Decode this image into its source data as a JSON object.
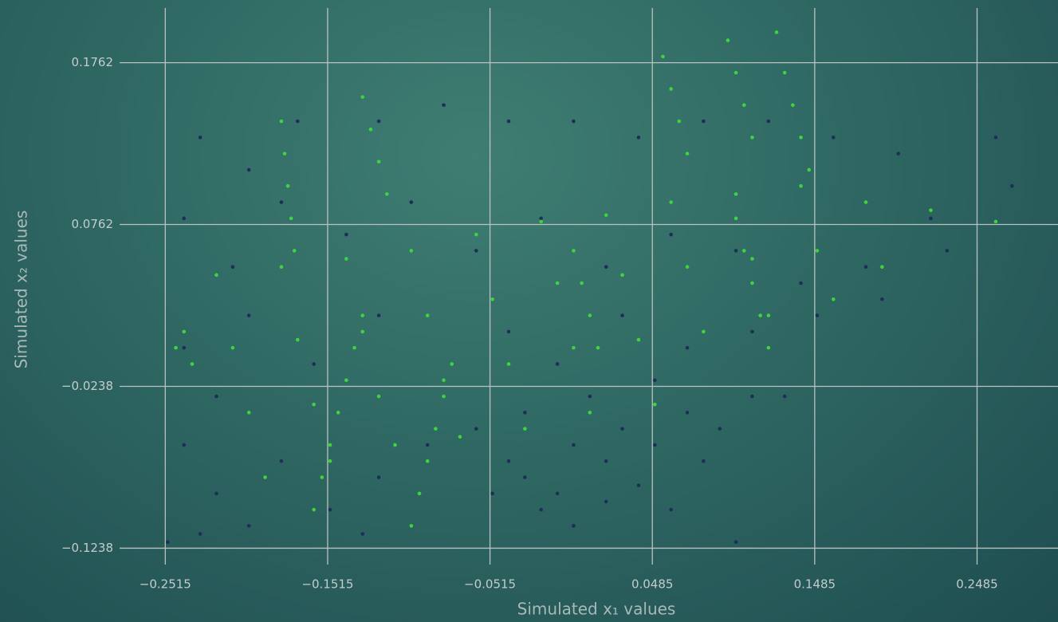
{
  "chart_data": {
    "type": "scatter",
    "x_label": "Simulated x₁ values",
    "y_label": "Simulated x₂ values",
    "xlim": [
      -0.26,
      0.29
    ],
    "ylim": [
      -0.13,
      0.21
    ],
    "xticks": [
      {
        "value": -0.2515,
        "label": "−0.2515"
      },
      {
        "value": -0.1515,
        "label": "−0.1515"
      },
      {
        "value": -0.0515,
        "label": "−0.0515"
      },
      0.0485,
      0.1485,
      0.2485
    ],
    "yticks": [
      {
        "value": -0.1238,
        "label": "−0.1238"
      },
      {
        "value": -0.0238,
        "label": "−0.0238"
      },
      0.0762,
      0.1762
    ],
    "grid": true,
    "series": [
      {
        "color": "#1d2f57",
        "x": [
          -0.23,
          -0.2,
          -0.17,
          -0.12,
          -0.08,
          -0.04,
          0.0,
          0.04,
          0.08,
          0.12,
          0.16,
          0.2,
          0.26,
          0.27,
          0.22,
          -0.24,
          -0.21,
          -0.18,
          -0.14,
          -0.1,
          -0.06,
          -0.02,
          0.02,
          0.06,
          0.1,
          0.14,
          0.18,
          0.23,
          -0.24,
          -0.22,
          -0.2,
          -0.16,
          -0.12,
          -0.08,
          -0.04,
          -0.01,
          0.03,
          0.07,
          0.11,
          0.15,
          0.19,
          -0.24,
          -0.22,
          -0.2,
          -0.18,
          -0.15,
          -0.12,
          -0.09,
          -0.06,
          -0.04,
          -0.03,
          -0.01,
          0.0,
          0.02,
          0.03,
          0.05,
          0.07,
          0.09,
          0.11,
          0.13,
          -0.02,
          0.0,
          0.02,
          -0.05,
          0.04,
          -0.25,
          -0.23,
          -0.13,
          0.06,
          0.1,
          0.0,
          0.01,
          0.05,
          -0.03,
          0.08
        ],
        "values": [
          0.13,
          0.11,
          0.14,
          0.14,
          0.15,
          0.14,
          0.14,
          0.13,
          0.14,
          0.14,
          0.13,
          0.12,
          0.13,
          0.1,
          0.08,
          0.08,
          0.05,
          0.09,
          0.07,
          0.09,
          0.06,
          0.08,
          0.05,
          0.07,
          0.06,
          0.04,
          0.05,
          0.06,
          0.0,
          -0.03,
          0.02,
          -0.01,
          0.02,
          -0.02,
          0.01,
          -0.01,
          0.02,
          0.0,
          0.01,
          0.02,
          0.03,
          -0.06,
          -0.09,
          -0.11,
          -0.07,
          -0.1,
          -0.08,
          -0.06,
          -0.05,
          -0.07,
          -0.08,
          -0.09,
          -0.06,
          -0.07,
          -0.05,
          -0.06,
          -0.04,
          -0.05,
          -0.03,
          -0.03,
          -0.1,
          -0.11,
          -0.095,
          -0.09,
          -0.085,
          -0.12,
          -0.115,
          -0.115,
          -0.1,
          -0.12,
          0.0,
          -0.03,
          -0.02,
          -0.04,
          -0.07
        ]
      },
      {
        "color": "#3ed43e",
        "x": [
          -0.18,
          -0.178,
          -0.176,
          -0.174,
          -0.172,
          -0.13,
          -0.125,
          -0.12,
          -0.115,
          0.055,
          0.06,
          0.065,
          0.07,
          0.095,
          0.1,
          0.105,
          0.11,
          0.125,
          0.13,
          0.135,
          0.14,
          0.145,
          -0.22,
          -0.18,
          -0.14,
          -0.1,
          -0.06,
          -0.02,
          0.02,
          0.06,
          0.1,
          0.14,
          0.18,
          0.22,
          0.26,
          -0.21,
          -0.17,
          -0.13,
          -0.09,
          -0.05,
          -0.01,
          0.03,
          0.07,
          0.11,
          0.15,
          0.19,
          -0.2,
          -0.16,
          -0.12,
          -0.08,
          -0.04,
          0.0,
          0.04,
          0.08,
          0.12,
          0.16,
          -0.19,
          -0.15,
          -0.11,
          -0.07,
          -0.03,
          0.01,
          0.05,
          -0.16,
          -0.155,
          -0.15,
          -0.145,
          -0.14,
          -0.135,
          -0.13,
          -0.1,
          -0.095,
          -0.09,
          -0.085,
          -0.08,
          -0.075,
          0.0,
          0.005,
          0.01,
          0.015,
          0.1,
          0.105,
          0.11,
          0.115,
          0.12,
          -0.245,
          -0.24,
          -0.235
        ],
        "values": [
          0.14,
          0.12,
          0.1,
          0.08,
          0.06,
          0.155,
          0.135,
          0.115,
          0.095,
          0.18,
          0.16,
          0.14,
          0.12,
          0.19,
          0.17,
          0.15,
          0.13,
          0.195,
          0.17,
          0.15,
          0.13,
          0.11,
          0.045,
          0.05,
          0.055,
          0.06,
          0.07,
          0.078,
          0.082,
          0.09,
          0.095,
          0.1,
          0.09,
          0.085,
          0.078,
          0.0,
          0.005,
          0.01,
          0.02,
          0.03,
          0.04,
          0.045,
          0.05,
          0.055,
          0.06,
          0.05,
          -0.04,
          -0.035,
          -0.03,
          -0.02,
          -0.01,
          0.0,
          0.005,
          0.01,
          0.02,
          0.03,
          -0.08,
          -0.07,
          -0.06,
          -0.055,
          -0.05,
          -0.04,
          -0.035,
          -0.1,
          -0.08,
          -0.06,
          -0.04,
          -0.02,
          0.0,
          0.02,
          -0.11,
          -0.09,
          -0.07,
          -0.05,
          -0.03,
          -0.01,
          0.06,
          0.04,
          0.02,
          0.0,
          0.08,
          0.06,
          0.04,
          0.02,
          0.0,
          0.0,
          0.01,
          -0.01
        ]
      }
    ]
  }
}
